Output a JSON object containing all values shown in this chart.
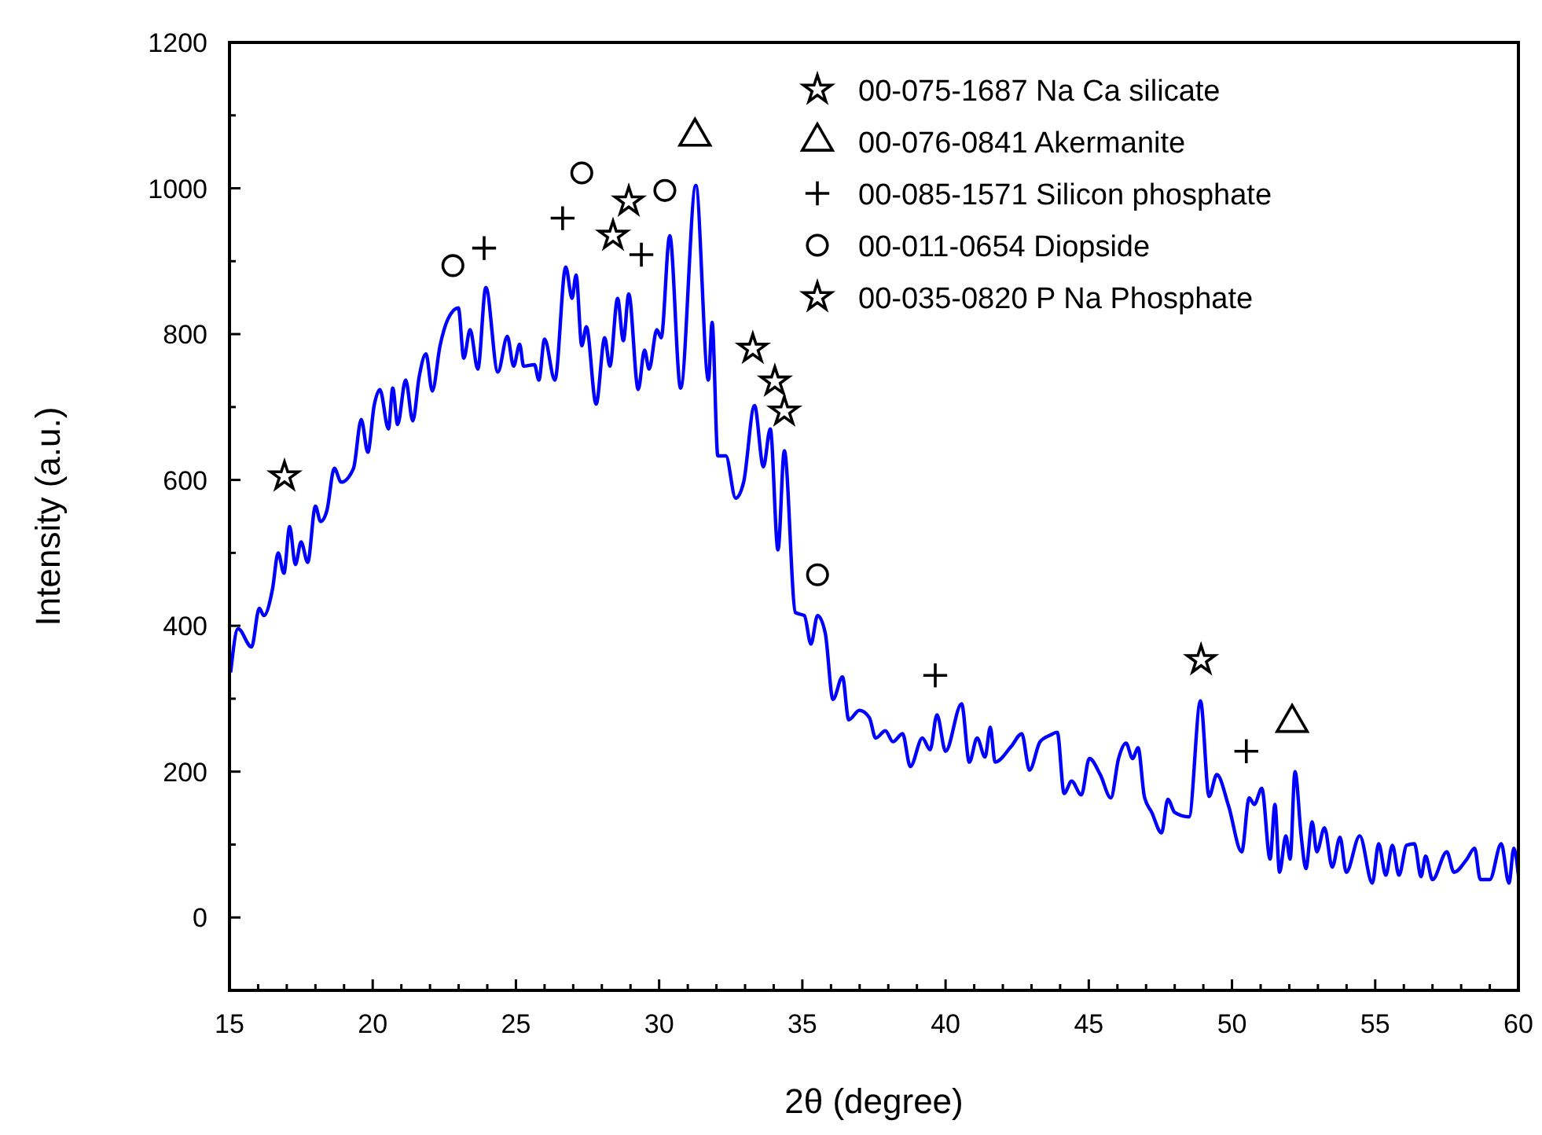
{
  "chart_data": {
    "type": "line",
    "xlabel": "2θ (degree)",
    "ylabel": "Intensity (a.u.)",
    "xlim": [
      15,
      60
    ],
    "ylim": [
      -100,
      1200
    ],
    "xticks": [
      15,
      {
        "value": 16,
        "label": null
      },
      {
        "value": 17,
        "label": null
      },
      {
        "value": 18,
        "label": null
      },
      {
        "value": 19,
        "label": null
      },
      20,
      {
        "value": 21,
        "label": null
      },
      {
        "value": 22,
        "label": null
      },
      {
        "value": 23,
        "label": null
      },
      {
        "value": 24,
        "label": null
      },
      25,
      {
        "value": 26,
        "label": null
      },
      {
        "value": 27,
        "label": null
      },
      {
        "value": 28,
        "label": null
      },
      {
        "value": 29,
        "label": null
      },
      30,
      {
        "value": 31,
        "label": null
      },
      {
        "value": 32,
        "label": null
      },
      {
        "value": 33,
        "label": null
      },
      {
        "value": 34,
        "label": null
      },
      35,
      {
        "value": 36,
        "label": null
      },
      {
        "value": 37,
        "label": null
      },
      {
        "value": 38,
        "label": null
      },
      {
        "value": 39,
        "label": null
      },
      40,
      {
        "value": 41,
        "label": null
      },
      {
        "value": 42,
        "label": null
      },
      {
        "value": 43,
        "label": null
      },
      {
        "value": 44,
        "label": null
      },
      45,
      {
        "value": 46,
        "label": null
      },
      {
        "value": 47,
        "label": null
      },
      {
        "value": 48,
        "label": null
      },
      {
        "value": 49,
        "label": null
      },
      50,
      {
        "value": 51,
        "label": null
      },
      {
        "value": 52,
        "label": null
      },
      {
        "value": 53,
        "label": null
      },
      {
        "value": 54,
        "label": null
      },
      55,
      {
        "value": 56,
        "label": null
      },
      {
        "value": 57,
        "label": null
      },
      {
        "value": 58,
        "label": null
      },
      {
        "value": 59,
        "label": null
      },
      60
    ],
    "yticks": [
      {
        "value": -100,
        "label": null
      },
      0,
      {
        "value": 100,
        "label": null
      },
      200,
      {
        "value": 300,
        "label": null
      },
      400,
      {
        "value": 500,
        "label": null
      },
      600,
      {
        "value": 700,
        "label": null
      },
      800,
      {
        "value": 900,
        "label": null
      },
      1000,
      {
        "value": 1100,
        "label": null
      },
      1200
    ],
    "grid": false,
    "legend": "top right",
    "line_style": "solid",
    "series": [
      {
        "color": "#0000ff",
        "marker": "none",
        "x": [
          15.04,
          15.3,
          15.77,
          16.04,
          16.2,
          16.5,
          16.7,
          16.9,
          17.1,
          17.3,
          17.5,
          17.73,
          18.0,
          18.18,
          18.4,
          18.66,
          18.9,
          19.33,
          19.6,
          19.83,
          20.05,
          20.25,
          20.55,
          20.7,
          20.87,
          21.15,
          21.4,
          21.62,
          21.86,
          22.08,
          22.35,
          22.63,
          22.99,
          23.18,
          23.4,
          23.67,
          23.95,
          24.37,
          24.7,
          24.92,
          25.13,
          25.27,
          25.65,
          25.8,
          26.0,
          26.36,
          26.74,
          26.96,
          27.1,
          27.3,
          27.46,
          27.8,
          28.1,
          28.28,
          28.55,
          28.75,
          28.94,
          29.27,
          29.49,
          29.65,
          29.92,
          30.07,
          30.37,
          30.75,
          31.28,
          31.72,
          31.85,
          32.05,
          32.33,
          32.67,
          32.95,
          33.33,
          33.64,
          33.88,
          34.15,
          34.37,
          34.76,
          35.07,
          35.3,
          35.53,
          35.8,
          36.07,
          36.4,
          36.62,
          36.99,
          37.34,
          37.56,
          37.9,
          38.16,
          38.5,
          38.77,
          39.19,
          39.46,
          39.7,
          40.0,
          40.56,
          40.83,
          41.1,
          41.38,
          41.56,
          41.73,
          42.3,
          42.66,
          42.93,
          43.3,
          43.65,
          43.9,
          44.14,
          44.4,
          44.74,
          45.02,
          45.4,
          45.77,
          46.04,
          46.3,
          46.53,
          46.72,
          46.94,
          47.2,
          47.54,
          47.76,
          48.0,
          48.5,
          48.9,
          49.2,
          49.47,
          49.88,
          50.34,
          50.6,
          50.78,
          51.04,
          51.33,
          51.5,
          51.66,
          51.88,
          52.03,
          52.2,
          52.42,
          52.58,
          52.8,
          52.96,
          53.23,
          53.5,
          53.77,
          53.99,
          54.46,
          54.9,
          55.12,
          55.37,
          55.6,
          55.83,
          56.1,
          56.37,
          56.6,
          56.76,
          57.0,
          57.5,
          57.75,
          58.2,
          58.47,
          58.67,
          59.0,
          59.4,
          59.67,
          59.84,
          60
        ],
        "values": [
          336,
          396,
          371,
          424,
          414,
          450,
          500,
          472,
          536,
          484,
          515,
          487,
          564,
          543,
          558,
          616,
          597,
          616,
          683,
          638,
          702,
          724,
          670,
          726,
          676,
          737,
          681,
          741,
          773,
          722,
          784,
          821,
          836,
          767,
          806,
          752,
          864,
          748,
          797,
          756,
          786,
          756,
          758,
          737,
          793,
          737,
          892,
          849,
          881,
          784,
          810,
          704,
          795,
          756,
          849,
          791,
          855,
          724,
          778,
          752,
          806,
          795,
          935,
          726,
          1004,
          737,
          816,
          633,
          633,
          575,
          597,
          702,
          618,
          670,
          504,
          640,
          418,
          414,
          375,
          414,
          390,
          299,
          330,
          271,
          284,
          274,
          246,
          256,
          241,
          252,
          207,
          246,
          230,
          278,
          228,
          293,
          213,
          246,
          220,
          261,
          213,
          235,
          252,
          202,
          241,
          250,
          254,
          170,
          187,
          168,
          218,
          196,
          164,
          218,
          239,
          218,
          233,
          166,
          144,
          116,
          162,
          144,
          138,
          297,
          166,
          196,
          153,
          90,
          164,
          155,
          177,
          80,
          155,
          62,
          112,
          80,
          200,
          110,
          67,
          131,
          90,
          123,
          69,
          110,
          62,
          112,
          47,
          101,
          58,
          99,
          58,
          99,
          101,
          56,
          84,
          52,
          90,
          62,
          80,
          95,
          52,
          52,
          101,
          47,
          95,
          58
        ]
      },
      {
        "type": "scatter",
        "name": "00-075-1687 Na Ca silicate",
        "color": "#000000",
        "marker": "star",
        "x": [
          33.27,
          34.04,
          48.92
        ],
        "values": [
          780,
          735,
          353
        ]
      },
      {
        "type": "scatter",
        "name": "00-076-0841 Akermanite",
        "color": "#000000",
        "marker": "triangle",
        "x": [
          31.25,
          52.1
        ],
        "values": [
          1071,
          267
        ]
      },
      {
        "type": "scatter",
        "name": "00-085-1571 Silicon phosphate",
        "color": "#000000",
        "marker": "cross",
        "x": [
          23.89,
          26.63,
          29.38,
          39.64,
          50.5
        ],
        "values": [
          918,
          959,
          909,
          332,
          228
        ]
      },
      {
        "type": "scatter",
        "name": "00-011-0654 Diopside",
        "color": "#000000",
        "marker": "circle",
        "x": [
          22.8,
          27.3,
          30.2,
          35.53
        ],
        "values": [
          894,
          1021,
          997,
          470
        ]
      },
      {
        "type": "scatter",
        "name": "00-035-0820 P Na Phosphate",
        "color": "#000000",
        "marker": "star",
        "x": [
          16.92,
          28.39,
          28.94,
          34.37
        ],
        "values": [
          605,
          935,
          982,
          694
        ]
      }
    ]
  }
}
